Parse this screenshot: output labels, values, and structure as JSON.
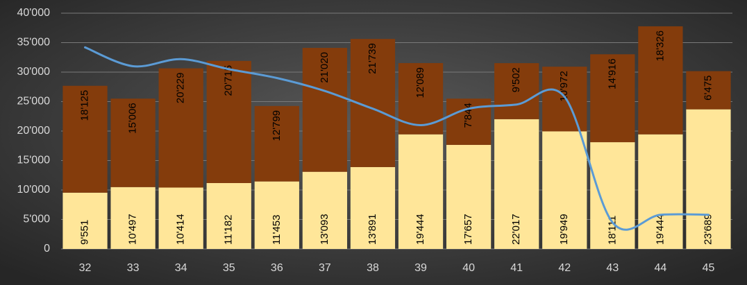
{
  "chart_data": {
    "type": "stacked_bar_line",
    "categories": [
      "32",
      "33",
      "34",
      "35",
      "36",
      "37",
      "38",
      "39",
      "40",
      "41",
      "42",
      "43",
      "44",
      "45"
    ],
    "series": [
      {
        "type": "bar",
        "color": "#ffe699",
        "values": [
          9551,
          10497,
          10414,
          11182,
          11453,
          13093,
          13891,
          19444,
          17657,
          22017,
          19949,
          18111,
          19444,
          23689
        ],
        "value_labels": [
          "9'551",
          "10'497",
          "10'414",
          "11'182",
          "11'453",
          "13'093",
          "13'891",
          "19'444",
          "17'657",
          "22'017",
          "19'949",
          "18'111",
          "19'444",
          "23'689"
        ]
      },
      {
        "type": "bar",
        "color": "#843c0c",
        "values": [
          18125,
          15006,
          20229,
          20715,
          12799,
          21020,
          21739,
          12089,
          7844,
          9502,
          10972,
          14916,
          18326,
          6475
        ],
        "value_labels": [
          "18'125",
          "15'006",
          "20'229",
          "20'715",
          "12'799",
          "21'020",
          "21'739",
          "12'089",
          "7'844",
          "9'502",
          "10'972",
          "14'916",
          "18'326",
          "6'475"
        ]
      },
      {
        "type": "line",
        "color": "#5b9bd5",
        "values": [
          34200,
          31000,
          32200,
          30500,
          29000,
          26800,
          23800,
          21000,
          23800,
          24500,
          25800,
          4500,
          5800,
          5800
        ]
      }
    ],
    "ylim": [
      0,
      40000
    ],
    "yticks": [
      0,
      {
        "value": 5000,
        "label": "5'000"
      },
      {
        "value": 10000,
        "label": "10'000"
      },
      {
        "value": 15000,
        "label": "15'000"
      },
      {
        "value": 20000,
        "label": "20'000"
      },
      {
        "value": 25000,
        "label": "25'000"
      },
      {
        "value": 30000,
        "label": "30'000"
      },
      {
        "value": 35000,
        "label": "35'000"
      },
      {
        "value": 40000,
        "label": "40'000"
      }
    ],
    "grid": true
  }
}
